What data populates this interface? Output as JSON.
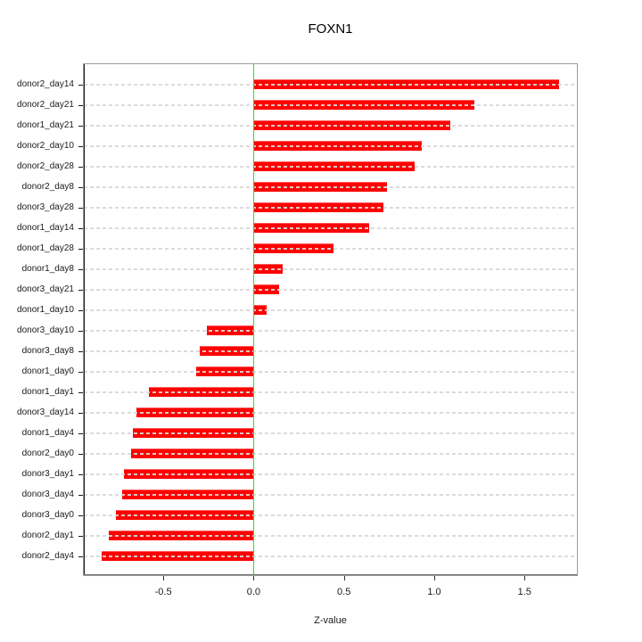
{
  "chart_data": {
    "type": "bar",
    "orientation": "horizontal",
    "title": "FOXN1",
    "xlabel": "Z-value",
    "ylabel": "",
    "categories": [
      "donor2_day14",
      "donor2_day21",
      "donor1_day21",
      "donor2_day10",
      "donor2_day28",
      "donor2_day8",
      "donor3_day28",
      "donor1_day14",
      "donor1_day28",
      "donor1_day8",
      "donor3_day21",
      "donor1_day10",
      "donor3_day10",
      "donor3_day8",
      "donor1_day0",
      "donor1_day1",
      "donor3_day14",
      "donor1_day4",
      "donor2_day0",
      "donor3_day1",
      "donor3_day4",
      "donor3_day0",
      "donor2_day1",
      "donor2_day4"
    ],
    "values": [
      1.69,
      1.22,
      1.09,
      0.93,
      0.89,
      0.74,
      0.72,
      0.64,
      0.44,
      0.16,
      0.14,
      0.07,
      -0.26,
      -0.3,
      -0.32,
      -0.58,
      -0.65,
      -0.67,
      -0.68,
      -0.72,
      -0.73,
      -0.76,
      -0.8,
      -0.84
    ],
    "xticks": [
      -0.5,
      0.0,
      0.5,
      1.0,
      1.5
    ],
    "xtick_labels": [
      "-0.5",
      "0.0",
      "0.5",
      "1.0",
      "1.5"
    ],
    "xlim": [
      -0.94,
      1.79
    ],
    "grid": "horizontal-dashed",
    "legend": "none",
    "colors": {
      "bar": "#FF0000",
      "zero_line": "#00FF00",
      "grid_line": "#D8D8D8",
      "box_border": "#9B9B9B",
      "text": "#1A1A1A"
    }
  }
}
